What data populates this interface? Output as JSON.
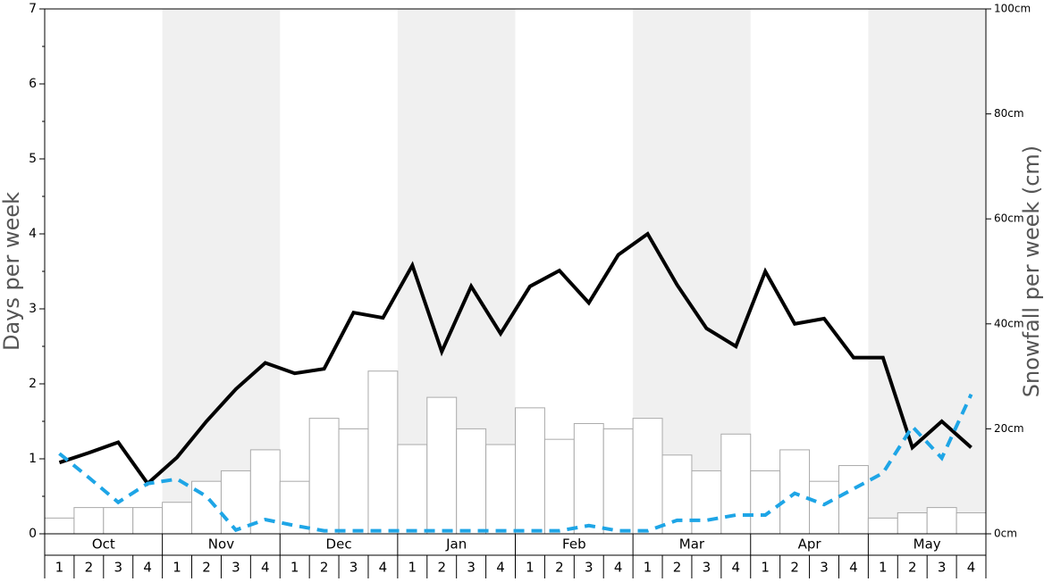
{
  "chart_data": {
    "type": "bar-line",
    "y_label": "Days per week",
    "y2_label": "Snowfall per week (cm)",
    "months": [
      "Oct",
      "Nov",
      "Dec",
      "Jan",
      "Feb",
      "Mar",
      "Apr",
      "May"
    ],
    "categories": [
      "1",
      "2",
      "3",
      "4",
      "1",
      "2",
      "3",
      "4",
      "1",
      "2",
      "3",
      "4",
      "1",
      "2",
      "3",
      "4",
      "1",
      "2",
      "3",
      "4",
      "1",
      "2",
      "3",
      "4",
      "1",
      "2",
      "3",
      "4",
      "1",
      "2",
      "3",
      "4"
    ],
    "series": [
      {
        "kind": "bar",
        "axis": "y2",
        "color": "#ffffff",
        "values": [
          3,
          5,
          5,
          5,
          6,
          10,
          12,
          16,
          10,
          22,
          20,
          31,
          17,
          26,
          20,
          17,
          24,
          18,
          21,
          20,
          22,
          15,
          12,
          19,
          12,
          16,
          10,
          13,
          3,
          4,
          5,
          4
        ]
      },
      {
        "kind": "line",
        "color": "#000000",
        "values": [
          0.95,
          1.08,
          1.22,
          0.67,
          1.02,
          1.5,
          1.93,
          2.28,
          2.14,
          2.2,
          2.95,
          2.88,
          3.58,
          2.43,
          3.3,
          2.67,
          3.3,
          3.51,
          3.08,
          3.72,
          4.0,
          3.32,
          2.74,
          2.5,
          3.5,
          2.8,
          2.87,
          2.35,
          2.35,
          1.15,
          1.5,
          1.15
        ]
      },
      {
        "kind": "line",
        "dashed": true,
        "color": "#1ea5e6",
        "values": [
          1.07,
          0.75,
          0.42,
          0.67,
          0.73,
          0.5,
          0.05,
          0.19,
          0.11,
          0.04,
          0.04,
          0.04,
          0.04,
          0.04,
          0.04,
          0.04,
          0.04,
          0.04,
          0.11,
          0.04,
          0.04,
          0.18,
          0.18,
          0.25,
          0.25,
          0.54,
          0.39,
          0.6,
          0.81,
          1.43,
          1.01,
          1.86
        ]
      }
    ],
    "ylim": [
      0,
      7
    ],
    "yticks": [
      0,
      1,
      2,
      3,
      4,
      5,
      6,
      7
    ],
    "y2lim": [
      0,
      100
    ],
    "y2ticks": [
      {
        "value": 0,
        "label": "0cm"
      },
      {
        "value": 20,
        "label": "20cm"
      },
      {
        "value": 40,
        "label": "40cm"
      },
      {
        "value": 60,
        "label": "60cm"
      },
      {
        "value": 80,
        "label": "80cm"
      },
      {
        "value": 100,
        "label": "100cm"
      }
    ]
  }
}
